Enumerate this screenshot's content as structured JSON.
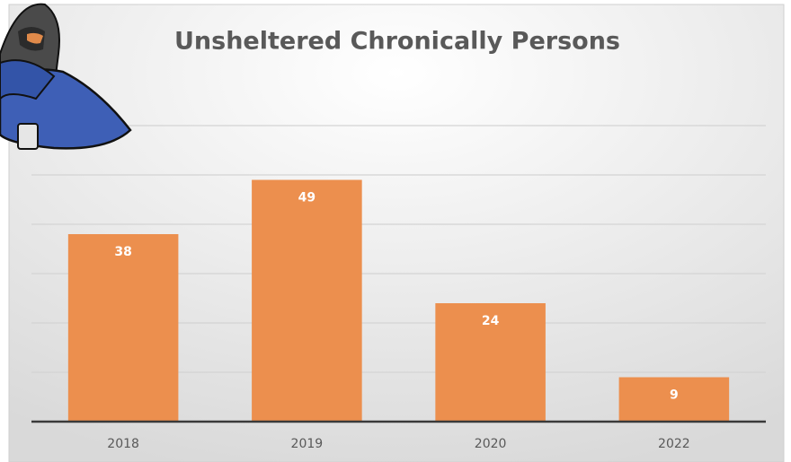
{
  "chart_data": {
    "type": "bar",
    "title": "Unsheltered Chronically Persons",
    "categories": [
      "2018",
      "2019",
      "2020",
      "2022"
    ],
    "values": [
      38,
      49,
      24,
      9
    ],
    "color": "#ec8f4e",
    "ylim": [
      0,
      60
    ],
    "yticks": [
      0,
      10,
      20,
      30,
      40,
      50,
      60
    ],
    "grid": true
  }
}
